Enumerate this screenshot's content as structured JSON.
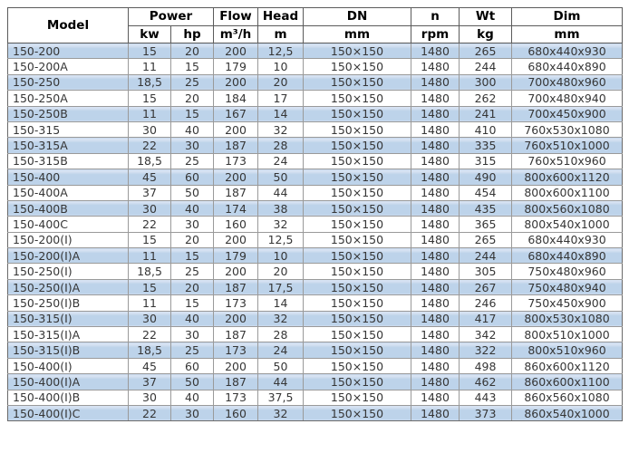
{
  "colors": {
    "row_band": "#bdd3ea",
    "row_band_highlight": "#d6e2f2",
    "grid_border": "#9a9a9a",
    "header_border": "#5b5b5b",
    "outer_border": "#6a6a6a",
    "data_text": "#363636",
    "header_text": "#000000",
    "page_background": "#ffffff"
  },
  "table": {
    "headers": {
      "model": "Model",
      "power": "Power",
      "flow": "Flow",
      "head": "Head",
      "dn": "DN",
      "n": "n",
      "wt": "Wt",
      "dim": "Dim"
    },
    "units": {
      "kw": "kw",
      "hp": "hp",
      "flow": "m³/h",
      "head": "m",
      "dn": "mm",
      "n": "rpm",
      "wt": "kg",
      "dim": "mm"
    },
    "rows": [
      {
        "model": "150-200",
        "kw": "15",
        "hp": "20",
        "flow": "200",
        "head": "12,5",
        "dn": "150×150",
        "rpm": "1480",
        "wt": "265",
        "dim": "680x440x930",
        "shaded": true
      },
      {
        "model": "150-200A",
        "kw": "11",
        "hp": "15",
        "flow": "179",
        "head": "10",
        "dn": "150×150",
        "rpm": "1480",
        "wt": "244",
        "dim": "680x440x890",
        "shaded": false
      },
      {
        "model": "150-250",
        "kw": "18,5",
        "hp": "25",
        "flow": "200",
        "head": "20",
        "dn": "150×150",
        "rpm": "1480",
        "wt": "300",
        "dim": "700x480x960",
        "shaded": true
      },
      {
        "model": "150-250A",
        "kw": "15",
        "hp": "20",
        "flow": "184",
        "head": "17",
        "dn": "150×150",
        "rpm": "1480",
        "wt": "262",
        "dim": "700x480x940",
        "shaded": false
      },
      {
        "model": "150-250B",
        "kw": "11",
        "hp": "15",
        "flow": "167",
        "head": "14",
        "dn": "150×150",
        "rpm": "1480",
        "wt": "241",
        "dim": "700x450x900",
        "shaded": true
      },
      {
        "model": "150-315",
        "kw": "30",
        "hp": "40",
        "flow": "200",
        "head": "32",
        "dn": "150×150",
        "rpm": "1480",
        "wt": "410",
        "dim": "760x530x1080",
        "shaded": false
      },
      {
        "model": "150-315A",
        "kw": "22",
        "hp": "30",
        "flow": "187",
        "head": "28",
        "dn": "150×150",
        "rpm": "1480",
        "wt": "335",
        "dim": "760x510x1000",
        "shaded": true
      },
      {
        "model": "150-315B",
        "kw": "18,5",
        "hp": "25",
        "flow": "173",
        "head": "24",
        "dn": "150×150",
        "rpm": "1480",
        "wt": "315",
        "dim": "760x510x960",
        "shaded": false
      },
      {
        "model": "150-400",
        "kw": "45",
        "hp": "60",
        "flow": "200",
        "head": "50",
        "dn": "150×150",
        "rpm": "1480",
        "wt": "490",
        "dim": "800x600x1120",
        "shaded": true
      },
      {
        "model": "150-400A",
        "kw": "37",
        "hp": "50",
        "flow": "187",
        "head": "44",
        "dn": "150×150",
        "rpm": "1480",
        "wt": "454",
        "dim": "800x600x1100",
        "shaded": false
      },
      {
        "model": "150-400B",
        "kw": "30",
        "hp": "40",
        "flow": "174",
        "head": "38",
        "dn": "150×150",
        "rpm": "1480",
        "wt": "435",
        "dim": "800x560x1080",
        "shaded": true
      },
      {
        "model": "150-400C",
        "kw": "22",
        "hp": "30",
        "flow": "160",
        "head": "32",
        "dn": "150×150",
        "rpm": "1480",
        "wt": "365",
        "dim": "800x540x1000",
        "shaded": false
      },
      {
        "model": "150-200(I)",
        "kw": "15",
        "hp": "20",
        "flow": "200",
        "head": "12,5",
        "dn": "150×150",
        "rpm": "1480",
        "wt": "265",
        "dim": "680x440x930",
        "shaded": false
      },
      {
        "model": "150-200(I)A",
        "kw": "11",
        "hp": "15",
        "flow": "179",
        "head": "10",
        "dn": "150×150",
        "rpm": "1480",
        "wt": "244",
        "dim": "680x440x890",
        "shaded": true
      },
      {
        "model": "150-250(I)",
        "kw": "18,5",
        "hp": "25",
        "flow": "200",
        "head": "20",
        "dn": "150×150",
        "rpm": "1480",
        "wt": "305",
        "dim": "750x480x960",
        "shaded": false
      },
      {
        "model": "150-250(I)A",
        "kw": "15",
        "hp": "20",
        "flow": "187",
        "head": "17,5",
        "dn": "150×150",
        "rpm": "1480",
        "wt": "267",
        "dim": "750x480x940",
        "shaded": true
      },
      {
        "model": "150-250(I)B",
        "kw": "11",
        "hp": "15",
        "flow": "173",
        "head": "14",
        "dn": "150×150",
        "rpm": "1480",
        "wt": "246",
        "dim": "750x450x900",
        "shaded": false
      },
      {
        "model": "150-315(I)",
        "kw": "30",
        "hp": "40",
        "flow": "200",
        "head": "32",
        "dn": "150×150",
        "rpm": "1480",
        "wt": "417",
        "dim": "800x530x1080",
        "shaded": true
      },
      {
        "model": "150-315(I)A",
        "kw": "22",
        "hp": "30",
        "flow": "187",
        "head": "28",
        "dn": "150×150",
        "rpm": "1480",
        "wt": "342",
        "dim": "800x510x1000",
        "shaded": false
      },
      {
        "model": "150-315(I)B",
        "kw": "18,5",
        "hp": "25",
        "flow": "173",
        "head": "24",
        "dn": "150×150",
        "rpm": "1480",
        "wt": "322",
        "dim": "800x510x960",
        "shaded": true
      },
      {
        "model": "150-400(I)",
        "kw": "45",
        "hp": "60",
        "flow": "200",
        "head": "50",
        "dn": "150×150",
        "rpm": "1480",
        "wt": "498",
        "dim": "860x600x1120",
        "shaded": false
      },
      {
        "model": "150-400(I)A",
        "kw": "37",
        "hp": "50",
        "flow": "187",
        "head": "44",
        "dn": "150×150",
        "rpm": "1480",
        "wt": "462",
        "dim": "860x600x1100",
        "shaded": true
      },
      {
        "model": "150-400(I)B",
        "kw": "30",
        "hp": "40",
        "flow": "173",
        "head": "37,5",
        "dn": "150×150",
        "rpm": "1480",
        "wt": "443",
        "dim": "860x560x1080",
        "shaded": false
      },
      {
        "model": "150-400(I)C",
        "kw": "22",
        "hp": "30",
        "flow": "160",
        "head": "32",
        "dn": "150×150",
        "rpm": "1480",
        "wt": "373",
        "dim": "860x540x1000",
        "shaded": true
      }
    ]
  }
}
